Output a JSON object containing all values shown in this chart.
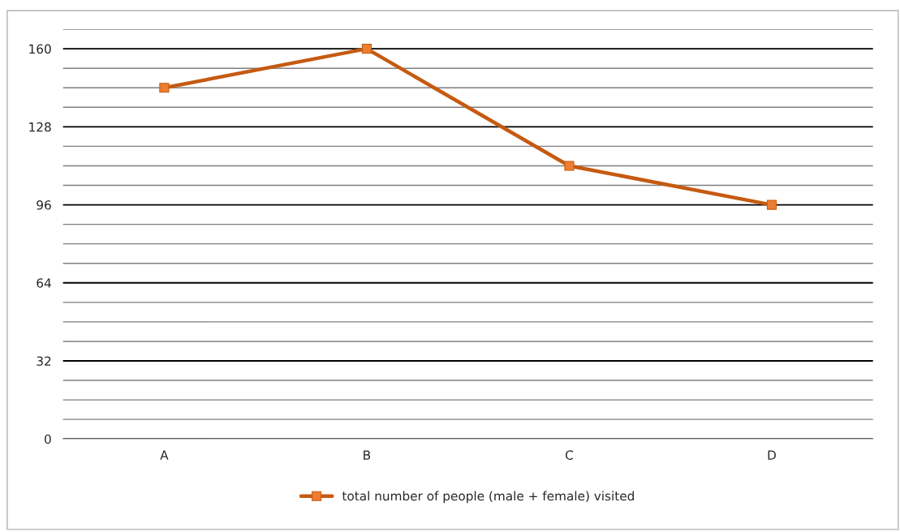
{
  "chart_data": {
    "type": "line",
    "categories": [
      "A",
      "B",
      "C",
      "D"
    ],
    "series": [
      {
        "name": "total number of people (male + female) visited",
        "color": "#c55a11",
        "values": [
          144,
          160,
          112,
          96
        ]
      }
    ],
    "ylim": [
      0,
      168
    ],
    "yticks": [
      0,
      {
        "value": 8,
        "label": null
      },
      {
        "value": 16,
        "label": null
      },
      {
        "value": 24,
        "label": null
      },
      32,
      {
        "value": 40,
        "label": null
      },
      {
        "value": 48,
        "label": null
      },
      {
        "value": 56,
        "label": null
      },
      64,
      {
        "value": 72,
        "label": null
      },
      {
        "value": 80,
        "label": null
      },
      {
        "value": 88,
        "label": null
      },
      96,
      {
        "value": 104,
        "label": null
      },
      {
        "value": 112,
        "label": null
      },
      {
        "value": 120,
        "label": null
      },
      128,
      {
        "value": 136,
        "label": null
      },
      {
        "value": 144,
        "label": null
      },
      {
        "value": 152,
        "label": null
      },
      160,
      {
        "value": 168,
        "label": null
      }
    ],
    "grid": "y",
    "legend": "bottom",
    "marker": "square",
    "line_style": "solid"
  }
}
